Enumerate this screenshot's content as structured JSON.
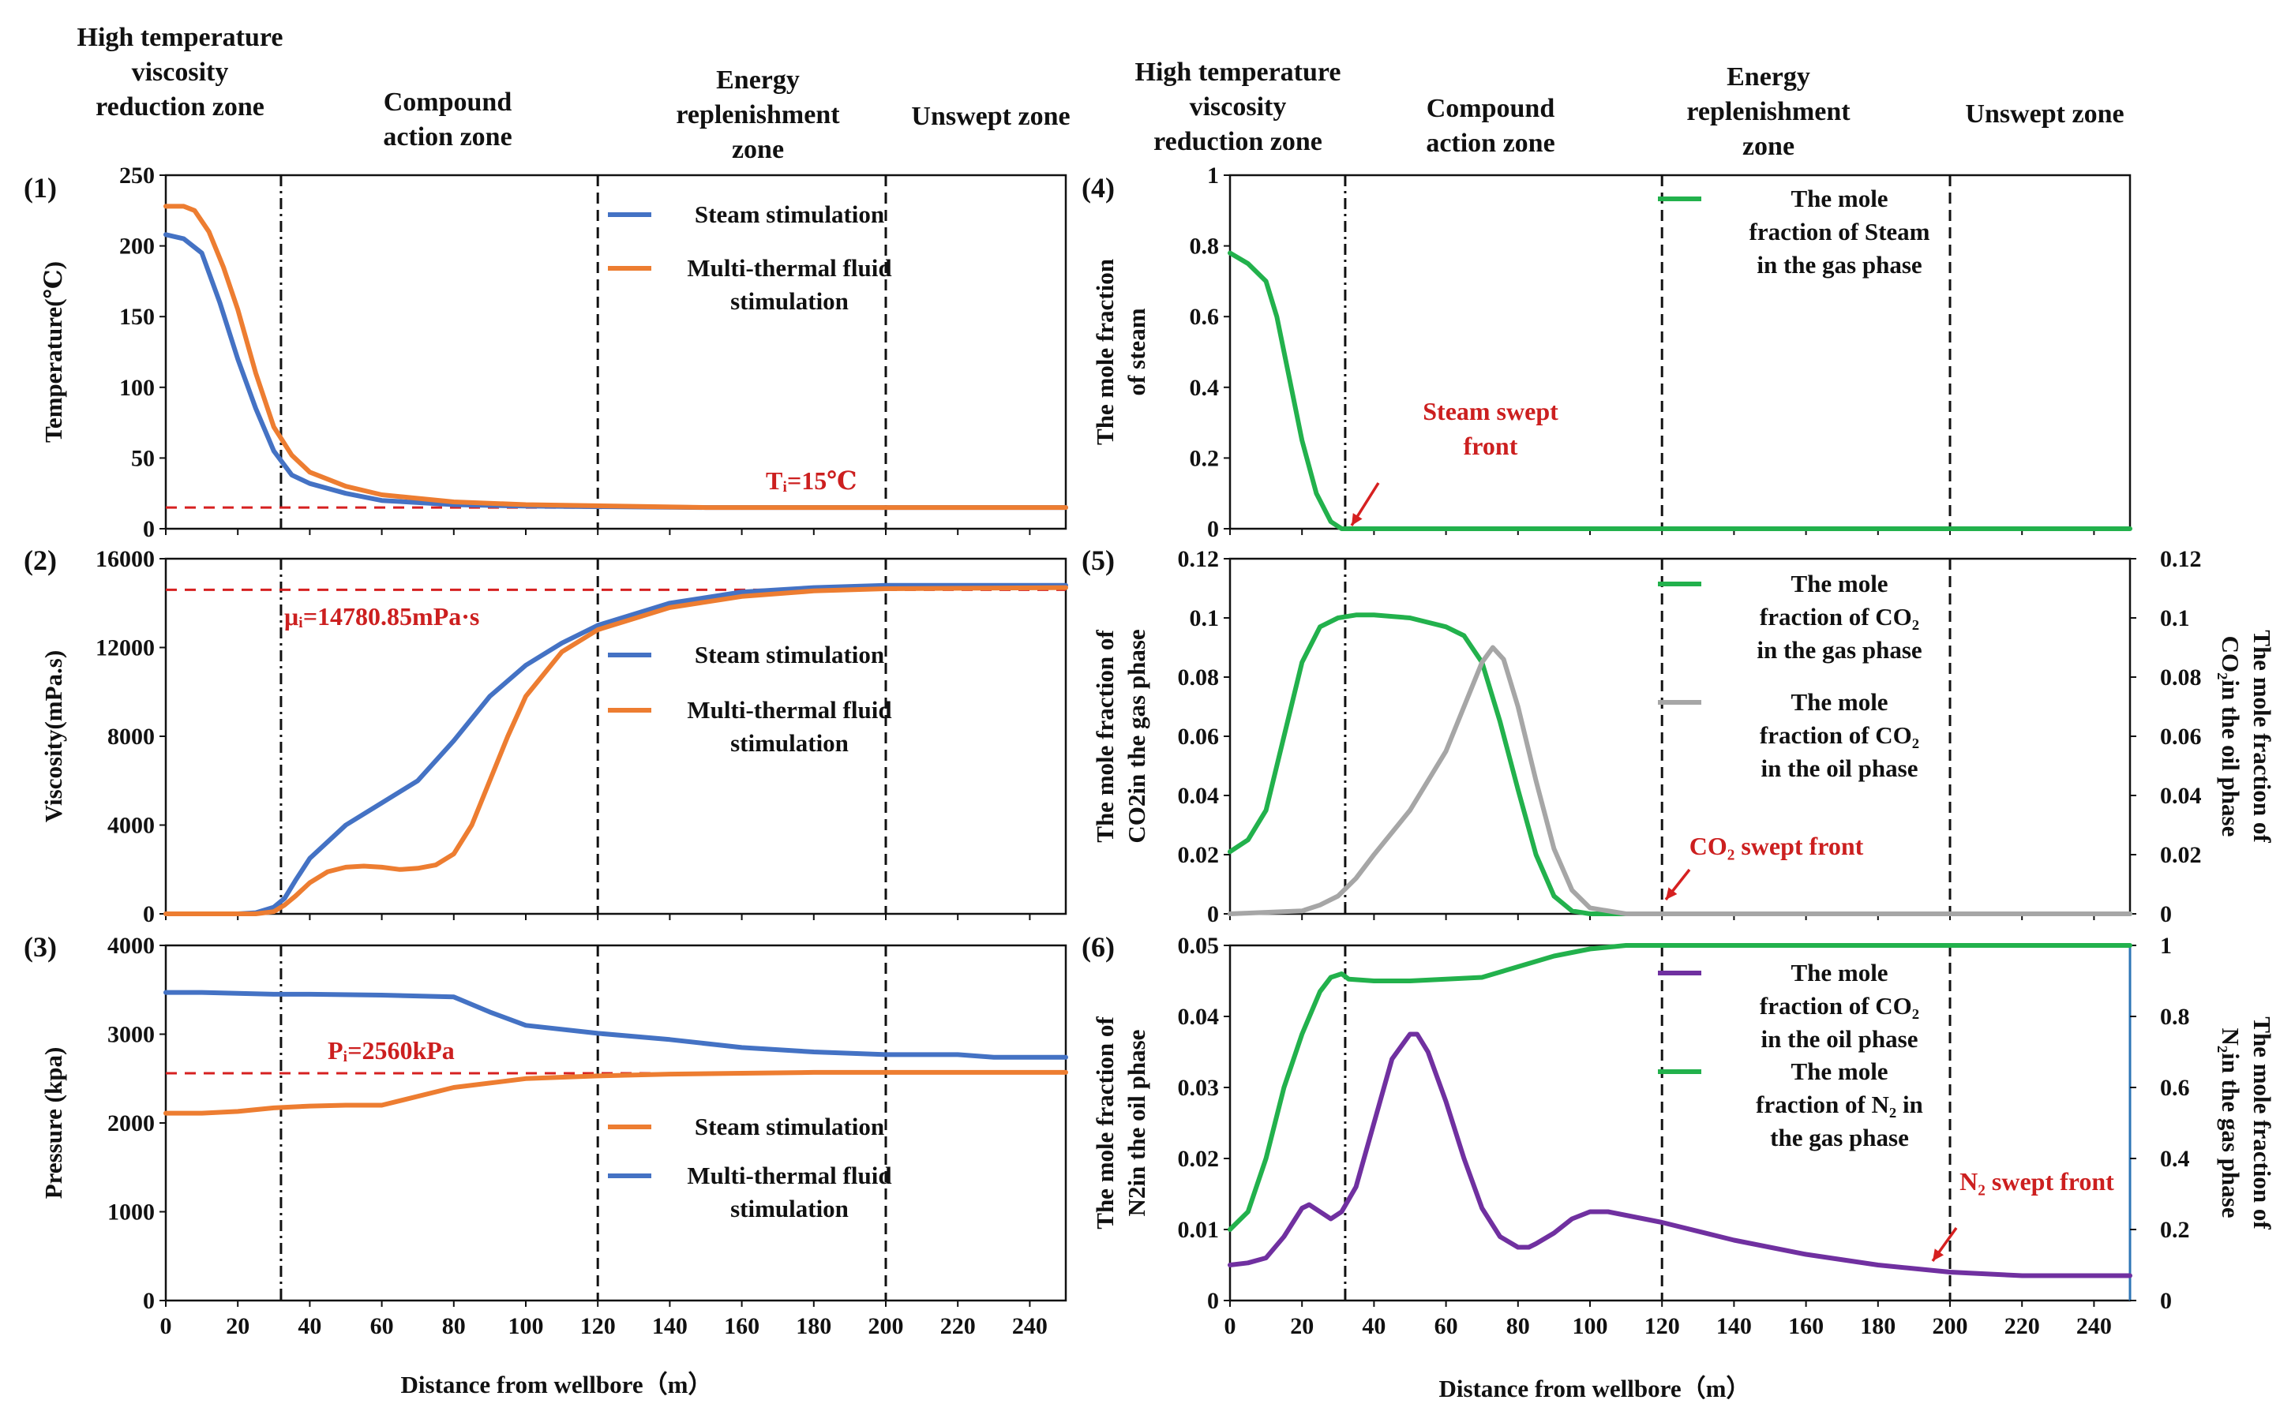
{
  "figure": {
    "xlabel_left": "Distance from wellbore（m）",
    "xlabel_right": "Distance from wellbore（m）",
    "zones_left": [
      [
        "High temperature",
        "viscosity",
        "reduction zone"
      ],
      [
        "Compound",
        "action zone"
      ],
      [
        "Energy",
        "replenishment",
        "zone"
      ],
      [
        "Unswept zone"
      ]
    ],
    "zones_right": [
      [
        "High temperature",
        "viscosity",
        "reduction zone"
      ],
      [
        "Compound",
        "action zone"
      ],
      [
        "Energy",
        "replenishment",
        "zone"
      ],
      [
        "Unswept zone"
      ]
    ],
    "zone_boundaries_m": [
      32,
      120,
      200
    ]
  },
  "colors": {
    "blue": "#4472C4",
    "orange": "#ED7D31",
    "green": "#22B14C",
    "gray": "#A6A6A6",
    "purple": "#7030A0",
    "red": "#D62020",
    "rightaxis6": "#2E75B6"
  },
  "chart_data": [
    {
      "id": "p1",
      "panel_label": "(1)",
      "type": "line",
      "ylabel": "Temperature(℃)",
      "ylim": [
        0,
        250
      ],
      "yticks": [
        "0",
        "50",
        "100",
        "150",
        "200",
        "250"
      ],
      "xlim": [
        0,
        250
      ],
      "xticks": [
        "0",
        "20",
        "40",
        "60",
        "80",
        "100",
        "120",
        "140",
        "160",
        "180",
        "200",
        "220",
        "240"
      ],
      "series": [
        {
          "name": "Steam stimulation",
          "color": "blue",
          "x": [
            0,
            5,
            10,
            15,
            20,
            25,
            30,
            35,
            40,
            50,
            60,
            80,
            100,
            150,
            200,
            250
          ],
          "y": [
            208,
            205,
            195,
            160,
            120,
            85,
            55,
            38,
            32,
            25,
            20,
            17,
            16,
            15,
            15,
            15
          ]
        },
        {
          "name": "Multi-thermal fluid stimulation",
          "color": "orange",
          "x": [
            0,
            5,
            8,
            12,
            16,
            20,
            25,
            30,
            35,
            40,
            50,
            60,
            80,
            100,
            150,
            200,
            250
          ],
          "y": [
            228,
            228,
            225,
            210,
            185,
            155,
            110,
            72,
            52,
            40,
            30,
            24,
            19,
            17,
            15,
            15,
            15
          ]
        }
      ],
      "legend": [
        [
          "Steam stimulation"
        ],
        [
          "Multi-thermal fluid",
          "stimulation"
        ]
      ],
      "refline": {
        "y": 15,
        "label": "Tᵢ=15℃"
      }
    },
    {
      "id": "p2",
      "panel_label": "(2)",
      "type": "line",
      "ylabel": "Viscosity(mPa.s)",
      "ylim": [
        0,
        16000
      ],
      "yticks": [
        "0",
        "4000",
        "8000",
        "12000",
        "16000"
      ],
      "xlim": [
        0,
        250
      ],
      "xticks": [
        "0",
        "20",
        "40",
        "60",
        "80",
        "100",
        "120",
        "140",
        "160",
        "180",
        "200",
        "220",
        "240"
      ],
      "series": [
        {
          "name": "Steam stimulation",
          "color": "blue",
          "x": [
            0,
            10,
            20,
            25,
            30,
            33,
            36,
            40,
            50,
            60,
            70,
            80,
            90,
            100,
            110,
            120,
            140,
            160,
            180,
            200,
            250
          ],
          "y": [
            0,
            0,
            0,
            50,
            300,
            700,
            1500,
            2500,
            4000,
            5000,
            6000,
            7800,
            9800,
            11200,
            12200,
            13000,
            14000,
            14500,
            14700,
            14800,
            14800
          ]
        },
        {
          "name": "Multi-thermal fluid stimulation",
          "color": "orange",
          "x": [
            0,
            10,
            20,
            25,
            30,
            33,
            36,
            40,
            45,
            50,
            55,
            60,
            65,
            70,
            75,
            80,
            85,
            90,
            95,
            100,
            110,
            120,
            140,
            160,
            180,
            200,
            250
          ],
          "y": [
            0,
            0,
            0,
            0,
            100,
            400,
            800,
            1400,
            1900,
            2100,
            2150,
            2100,
            2000,
            2050,
            2200,
            2700,
            4000,
            6000,
            8000,
            9800,
            11800,
            12800,
            13800,
            14300,
            14550,
            14650,
            14700
          ]
        }
      ],
      "legend": [
        [
          "Steam stimulation"
        ],
        [
          "Multi-thermal fluid",
          "stimulation"
        ]
      ],
      "refline": {
        "y": 14600,
        "label": "μᵢ=14780.85mPa·s"
      }
    },
    {
      "id": "p3",
      "panel_label": "(3)",
      "type": "line",
      "ylabel": "Pressure (kpa)",
      "ylim": [
        0,
        4000
      ],
      "yticks": [
        "0",
        "1000",
        "2000",
        "3000",
        "4000"
      ],
      "xlim": [
        0,
        250
      ],
      "xticks": [
        "0",
        "20",
        "40",
        "60",
        "80",
        "100",
        "120",
        "140",
        "160",
        "180",
        "200",
        "220",
        "240"
      ],
      "series": [
        {
          "name": "Steam stimulation",
          "color": "orange",
          "x": [
            0,
            10,
            20,
            30,
            40,
            50,
            60,
            80,
            100,
            120,
            140,
            160,
            180,
            200,
            220,
            250
          ],
          "y": [
            2110,
            2110,
            2130,
            2170,
            2190,
            2200,
            2200,
            2400,
            2500,
            2530,
            2550,
            2560,
            2570,
            2570,
            2570,
            2570
          ]
        },
        {
          "name": "Multi-thermal fluid stimulation",
          "color": "blue",
          "x": [
            0,
            10,
            20,
            30,
            40,
            60,
            80,
            90,
            100,
            120,
            140,
            160,
            180,
            200,
            220,
            230,
            240,
            250
          ],
          "y": [
            3470,
            3470,
            3460,
            3450,
            3450,
            3440,
            3420,
            3250,
            3100,
            3010,
            2940,
            2850,
            2800,
            2770,
            2770,
            2740,
            2740,
            2740
          ]
        }
      ],
      "legend": [
        [
          "Steam stimulation"
        ],
        [
          "Multi-thermal fluid",
          "stimulation"
        ]
      ],
      "refline": {
        "y": 2560,
        "label": "Pᵢ=2560kPa"
      }
    },
    {
      "id": "p4",
      "panel_label": "(4)",
      "type": "line",
      "ylabel": [
        "The mole fraction",
        "of steam"
      ],
      "ylim": [
        0,
        1
      ],
      "yticks": [
        "0",
        "0.2",
        "0.4",
        "0.6",
        "0.8",
        "1"
      ],
      "xlim": [
        0,
        250
      ],
      "xticks": [
        "0",
        "20",
        "40",
        "60",
        "80",
        "100",
        "120",
        "140",
        "160",
        "180",
        "200",
        "220",
        "240"
      ],
      "series": [
        {
          "name": "The mole fraction of Steam in the gas phase",
          "color": "green",
          "x": [
            0,
            5,
            10,
            13,
            16,
            20,
            24,
            28,
            31,
            33,
            40,
            60,
            100,
            150,
            200,
            250
          ],
          "y": [
            0.78,
            0.75,
            0.7,
            0.6,
            0.45,
            0.25,
            0.1,
            0.02,
            0,
            0,
            0,
            0,
            0,
            0,
            0,
            0
          ]
        }
      ],
      "legend": [
        [
          "The mole",
          "fraction of Steam",
          "in the gas phase"
        ]
      ],
      "annotation": [
        "Steam swept",
        "front"
      ]
    },
    {
      "id": "p5",
      "panel_label": "(5)",
      "type": "line",
      "ylabel": [
        "The mole fraction of",
        "CO2in the gas phase"
      ],
      "ylim": [
        0,
        0.12
      ],
      "yticks": [
        "0",
        "0.02",
        "0.04",
        "0.06",
        "0.08",
        "0.1",
        "0.12"
      ],
      "ylabel_right": [
        "The mole fraction of",
        "CO₂in the oil phase"
      ],
      "ylim_right": [
        0,
        0.12
      ],
      "yticks_right": [
        "0",
        "0.02",
        "0.04",
        "0.06",
        "0.08",
        "0.1",
        "0.12"
      ],
      "xlim": [
        0,
        250
      ],
      "xticks": [
        "0",
        "20",
        "40",
        "60",
        "80",
        "100",
        "120",
        "140",
        "160",
        "180",
        "200",
        "220",
        "240"
      ],
      "series": [
        {
          "name": "The mole fraction of CO₂ in the gas phase",
          "color": "green",
          "axis": "left",
          "x": [
            0,
            5,
            10,
            15,
            20,
            25,
            30,
            35,
            40,
            45,
            50,
            60,
            65,
            70,
            75,
            80,
            85,
            90,
            95,
            100,
            110,
            250
          ],
          "y": [
            0.021,
            0.025,
            0.035,
            0.06,
            0.085,
            0.097,
            0.1,
            0.101,
            0.101,
            0.1005,
            0.1,
            0.097,
            0.094,
            0.085,
            0.065,
            0.042,
            0.02,
            0.006,
            0.001,
            0,
            0,
            0
          ]
        },
        {
          "name": "The mole fraction of CO₂ in the oil phase",
          "color": "gray",
          "axis": "right",
          "x": [
            0,
            20,
            25,
            30,
            35,
            40,
            50,
            60,
            65,
            70,
            73,
            76,
            80,
            85,
            90,
            95,
            100,
            110,
            250
          ],
          "y": [
            0,
            0.001,
            0.003,
            0.006,
            0.012,
            0.02,
            0.035,
            0.055,
            0.07,
            0.085,
            0.09,
            0.086,
            0.07,
            0.045,
            0.022,
            0.008,
            0.002,
            0,
            0
          ]
        }
      ],
      "legend": [
        [
          "The mole",
          "fraction of CO₂",
          "in the gas phase"
        ],
        [
          "The mole",
          "fraction of CO₂",
          "in the oil phase"
        ]
      ],
      "annotation": [
        "CO₂ swept front"
      ]
    },
    {
      "id": "p6",
      "panel_label": "(6)",
      "type": "line",
      "ylabel": [
        "The mole fraction of",
        "N2in the oil phase"
      ],
      "ylim": [
        0,
        0.05
      ],
      "yticks": [
        "0",
        "0.01",
        "0.02",
        "0.03",
        "0.04",
        "0.05"
      ],
      "ylabel_right": [
        "The mole fraction of",
        "N₂in the gas phase"
      ],
      "ylim_right": [
        0,
        1
      ],
      "yticks_right": [
        "0",
        "0.2",
        "0.4",
        "0.6",
        "0.8",
        "1"
      ],
      "xlim": [
        0,
        250
      ],
      "xticks": [
        "0",
        "20",
        "40",
        "60",
        "80",
        "100",
        "120",
        "140",
        "160",
        "180",
        "200",
        "220",
        "240"
      ],
      "series": [
        {
          "name": "The mole fraction of CO₂ in the oil phase",
          "color": "purple",
          "axis": "left",
          "x": [
            0,
            5,
            10,
            15,
            20,
            22,
            25,
            28,
            31,
            35,
            40,
            45,
            50,
            52,
            55,
            60,
            65,
            70,
            75,
            80,
            83,
            85,
            90,
            95,
            100,
            105,
            110,
            120,
            140,
            160,
            180,
            200,
            220,
            250
          ],
          "y": [
            0.005,
            0.0053,
            0.006,
            0.009,
            0.013,
            0.0135,
            0.0125,
            0.0115,
            0.0125,
            0.016,
            0.025,
            0.034,
            0.0375,
            0.0375,
            0.035,
            0.028,
            0.02,
            0.013,
            0.009,
            0.0075,
            0.0075,
            0.008,
            0.0095,
            0.0115,
            0.0125,
            0.0125,
            0.012,
            0.011,
            0.0085,
            0.0065,
            0.005,
            0.004,
            0.0035,
            0.0035
          ]
        },
        {
          "name": "The mole fraction of N₂ in the gas phase",
          "color": "green",
          "axis": "right",
          "x": [
            0,
            5,
            10,
            15,
            20,
            25,
            28,
            31,
            33,
            40,
            50,
            60,
            70,
            80,
            90,
            100,
            110,
            120,
            250
          ],
          "y": [
            0.2,
            0.25,
            0.4,
            0.6,
            0.75,
            0.87,
            0.91,
            0.92,
            0.905,
            0.9,
            0.9,
            0.905,
            0.91,
            0.94,
            0.97,
            0.99,
            1,
            1,
            1
          ]
        }
      ],
      "legend": [
        [
          "The mole",
          "fraction of CO₂",
          "in the oil phase"
        ],
        [
          "The mole",
          "fraction of N₂ in",
          "the gas phase"
        ]
      ],
      "annotation": [
        "N₂ swept front"
      ]
    }
  ]
}
